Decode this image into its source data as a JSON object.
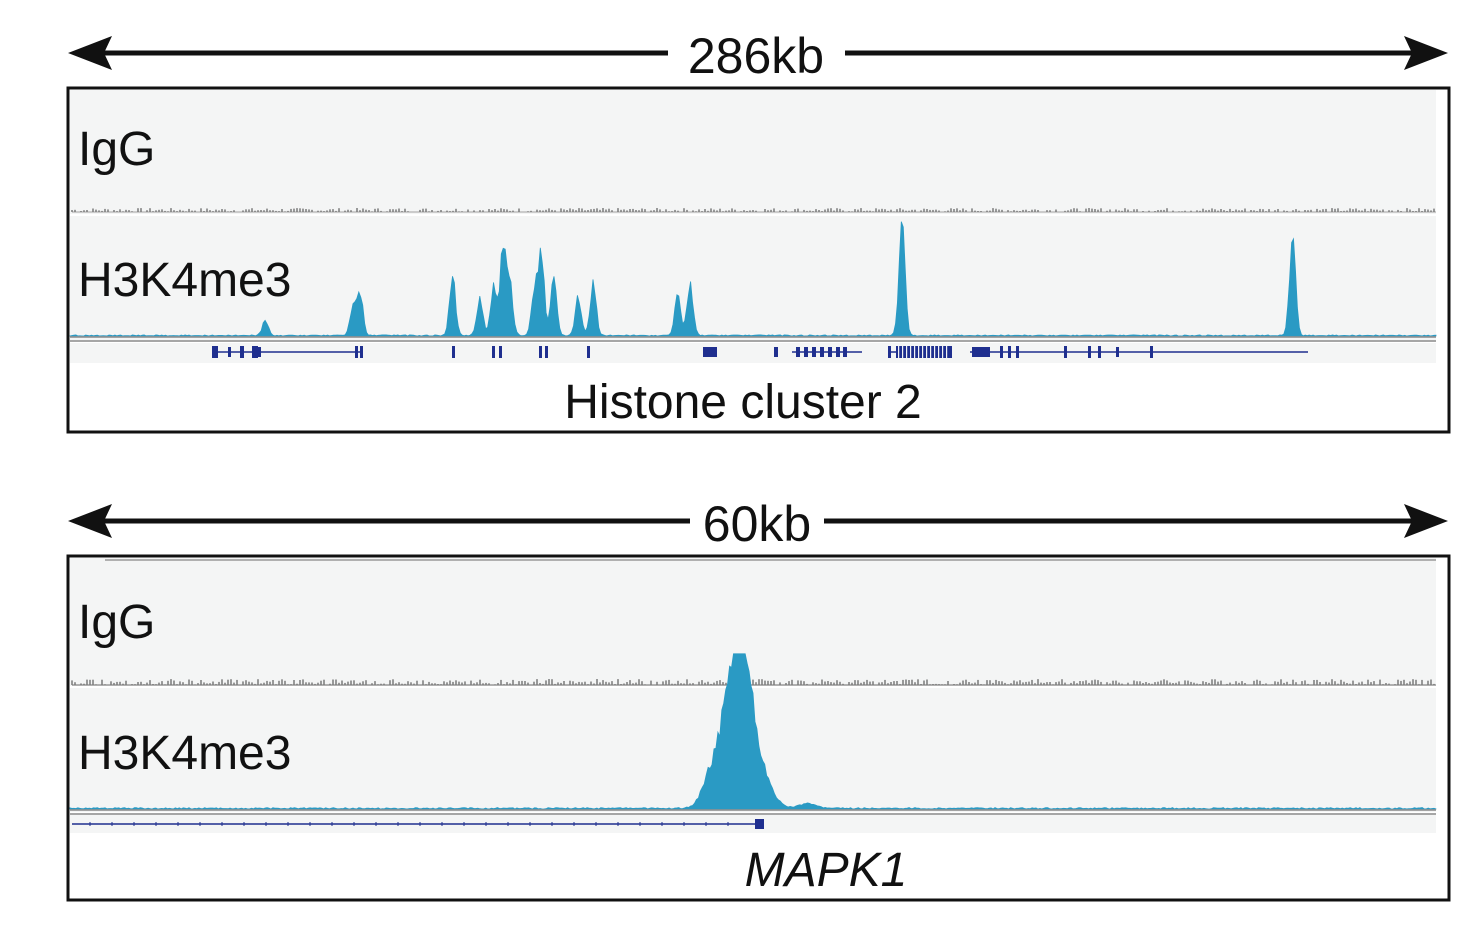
{
  "panels": [
    {
      "scale_label": "286kb",
      "tracks": [
        {
          "label": "IgG",
          "color": "#7a7a7a"
        },
        {
          "label": "H3K4me3",
          "color": "#2a9ac4"
        }
      ],
      "gene_label": "Histone cluster 2",
      "gene_label_italic": false,
      "peaks_h3k4me3": [
        {
          "pos": 0.143,
          "height": 0.18
        },
        {
          "pos": 0.207,
          "height": 0.3
        },
        {
          "pos": 0.212,
          "height": 0.55
        },
        {
          "pos": 0.28,
          "height": 0.7
        },
        {
          "pos": 0.3,
          "height": 0.45
        },
        {
          "pos": 0.31,
          "height": 0.58
        },
        {
          "pos": 0.317,
          "height": 1.0
        },
        {
          "pos": 0.322,
          "height": 0.62
        },
        {
          "pos": 0.34,
          "height": 0.55
        },
        {
          "pos": 0.345,
          "height": 0.95
        },
        {
          "pos": 0.354,
          "height": 0.65
        },
        {
          "pos": 0.372,
          "height": 0.45
        },
        {
          "pos": 0.383,
          "height": 0.62
        },
        {
          "pos": 0.445,
          "height": 0.48
        },
        {
          "pos": 0.454,
          "height": 0.62
        },
        {
          "pos": 0.609,
          "height": 1.3
        },
        {
          "pos": 0.895,
          "height": 1.25
        }
      ]
    },
    {
      "scale_label": "60kb",
      "tracks": [
        {
          "label": "IgG",
          "color": "#7a7a7a"
        },
        {
          "label": "H3K4me3",
          "color": "#2a9ac4"
        }
      ],
      "gene_label": "MAPK1",
      "gene_label_italic": true,
      "peaks_h3k4me3": [
        {
          "pos": 0.47,
          "height": 0.35
        },
        {
          "pos": 0.482,
          "height": 0.75
        },
        {
          "pos": 0.49,
          "height": 1.0
        },
        {
          "pos": 0.498,
          "height": 0.7
        },
        {
          "pos": 0.51,
          "height": 0.2
        },
        {
          "pos": 0.54,
          "height": 0.05
        }
      ]
    }
  ],
  "colors": {
    "frame": "#111111",
    "track_background": "#f4f5f5",
    "gene_model": "#1f2f8f",
    "h3k4me3": "#2a9ac4",
    "igg": "#7a7a7a"
  }
}
